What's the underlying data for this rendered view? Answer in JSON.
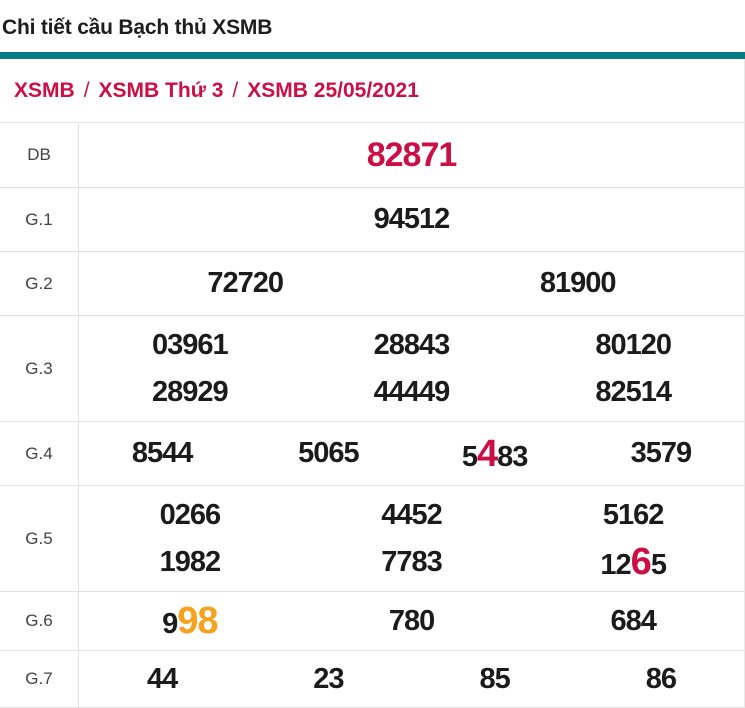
{
  "title": "Chi tiết cầu Bạch thủ XSMB",
  "breadcrumb": {
    "separator": "/",
    "items": [
      "XSMB",
      "XSMB Thứ 3",
      "XSMB 25/05/2021"
    ]
  },
  "colors": {
    "teal_bar": "#067d86",
    "crimson": "#cb0f45",
    "orange": "#f8a11c",
    "number_text": "#1b1b1b",
    "label_text": "#424242",
    "border": "#e2e2e2"
  },
  "table": {
    "rows": [
      {
        "label": "DB",
        "lines": [
          [
            [
              {
                "text": "82871",
                "style": "db"
              }
            ]
          ]
        ]
      },
      {
        "label": "G.1",
        "lines": [
          [
            [
              {
                "text": "94512",
                "style": "plain"
              }
            ]
          ]
        ]
      },
      {
        "label": "G.2",
        "lines": [
          [
            [
              {
                "text": "72720",
                "style": "plain"
              }
            ],
            [
              {
                "text": "81900",
                "style": "plain"
              }
            ]
          ]
        ]
      },
      {
        "label": "G.3",
        "lines": [
          [
            [
              {
                "text": "03961",
                "style": "plain"
              }
            ],
            [
              {
                "text": "28843",
                "style": "plain"
              }
            ],
            [
              {
                "text": "80120",
                "style": "plain"
              }
            ]
          ],
          [
            [
              {
                "text": "28929",
                "style": "plain"
              }
            ],
            [
              {
                "text": "44449",
                "style": "plain"
              }
            ],
            [
              {
                "text": "82514",
                "style": "plain"
              }
            ]
          ]
        ]
      },
      {
        "label": "G.4",
        "lines": [
          [
            [
              {
                "text": "8544",
                "style": "plain"
              }
            ],
            [
              {
                "text": "5065",
                "style": "plain"
              }
            ],
            [
              {
                "text": "5",
                "style": "plain"
              },
              {
                "text": "4",
                "style": "red"
              },
              {
                "text": "83",
                "style": "plain"
              }
            ],
            [
              {
                "text": "3579",
                "style": "plain"
              }
            ]
          ]
        ]
      },
      {
        "label": "G.5",
        "lines": [
          [
            [
              {
                "text": "0266",
                "style": "plain"
              }
            ],
            [
              {
                "text": "4452",
                "style": "plain"
              }
            ],
            [
              {
                "text": "5162",
                "style": "plain"
              }
            ]
          ],
          [
            [
              {
                "text": "1982",
                "style": "plain"
              }
            ],
            [
              {
                "text": "7783",
                "style": "plain"
              }
            ],
            [
              {
                "text": "12",
                "style": "plain"
              },
              {
                "text": "6",
                "style": "red"
              },
              {
                "text": "5",
                "style": "plain"
              }
            ]
          ]
        ]
      },
      {
        "label": "G.6",
        "lines": [
          [
            [
              {
                "text": "9",
                "style": "plain"
              },
              {
                "text": "98",
                "style": "orange"
              }
            ],
            [
              {
                "text": "780",
                "style": "plain"
              }
            ],
            [
              {
                "text": "684",
                "style": "plain"
              }
            ]
          ]
        ]
      },
      {
        "label": "G.7",
        "lines": [
          [
            [
              {
                "text": "44",
                "style": "plain"
              }
            ],
            [
              {
                "text": "23",
                "style": "plain"
              }
            ],
            [
              {
                "text": "85",
                "style": "plain"
              }
            ],
            [
              {
                "text": "86",
                "style": "plain"
              }
            ]
          ]
        ]
      }
    ]
  }
}
